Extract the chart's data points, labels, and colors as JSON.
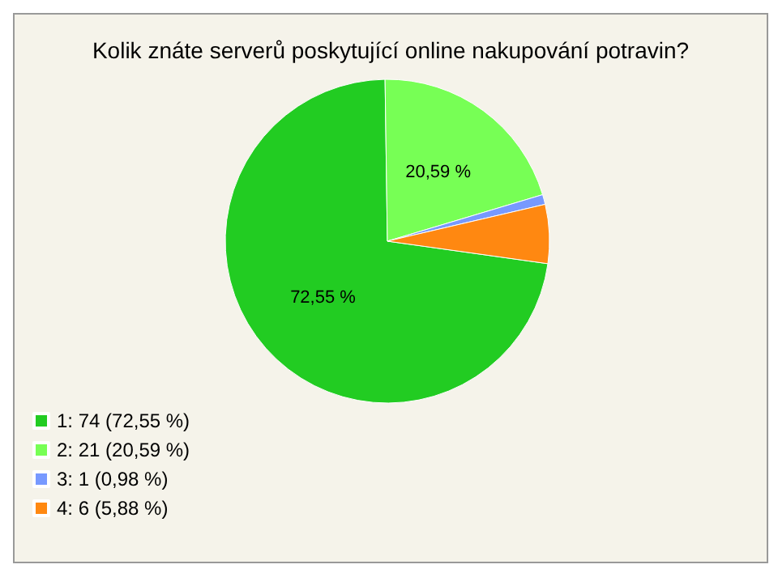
{
  "chart_data": {
    "type": "pie",
    "title": "Kolik znáte serverů poskytující online nakupování potravin?",
    "categories": [
      "1: 74 (72,55 %)",
      "2: 21 (20,59 %)",
      "3: 1 (0,98 %)",
      "4: 6 (5,88 %)"
    ],
    "values": [
      72.55,
      20.59,
      0.98,
      5.88
    ],
    "colors": [
      "#22cc22",
      "#77ff55",
      "#7799ff",
      "#ff8811"
    ],
    "value_labels": [
      "72,55 %",
      "20,59 %",
      null,
      null
    ],
    "legend": "bottom left"
  }
}
